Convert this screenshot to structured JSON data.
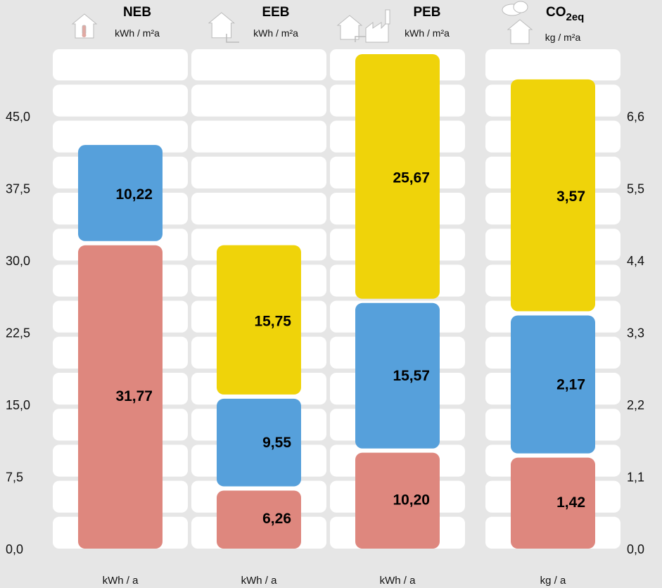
{
  "colors": {
    "background": "#e6e6e6",
    "panel": "#ffffff",
    "red": "#de877e",
    "blue": "#56a0db",
    "yellow": "#efd30a",
    "icon": "#ffffff",
    "icon_outline": "#bbbbbb"
  },
  "chart_data": {
    "type": "bar",
    "stacked": true,
    "grid": true,
    "left_axis": {
      "ticks": [
        "0,0",
        "7,5",
        "15,0",
        "22,5",
        "30,0",
        "37,5",
        "45,0"
      ],
      "ylim": [
        0,
        50
      ]
    },
    "right_axis": {
      "ticks": [
        "0,0",
        "1,1",
        "2,2",
        "3,3",
        "4,4",
        "5,5",
        "6,6"
      ],
      "ylim": [
        0,
        7.33
      ]
    },
    "columns": [
      {
        "title": "NEB",
        "unit": "kWh / m²a",
        "bottom_unit": "kWh / a",
        "icon": "house-thermometer-icon",
        "axis": "left",
        "segments": [
          {
            "value": 31.77,
            "label": "31,77",
            "color": "red"
          },
          {
            "value": 10.22,
            "label": "10,22",
            "color": "blue"
          }
        ]
      },
      {
        "title": "EEB",
        "unit": "kWh / m²a",
        "bottom_unit": "kWh / a",
        "icon": "house-pipe-icon",
        "axis": "left",
        "segments": [
          {
            "value": 6.26,
            "label": "6,26",
            "color": "red"
          },
          {
            "value": 9.55,
            "label": "9,55",
            "color": "blue"
          },
          {
            "value": 15.75,
            "label": "15,75",
            "color": "yellow"
          }
        ]
      },
      {
        "title": "PEB",
        "unit": "kWh / m²a",
        "bottom_unit": "kWh / a",
        "icon": "house-factory-icon",
        "axis": "left",
        "segments": [
          {
            "value": 10.2,
            "label": "10,20",
            "color": "red"
          },
          {
            "value": 15.57,
            "label": "15,57",
            "color": "blue"
          },
          {
            "value": 25.67,
            "label": "25,67",
            "color": "yellow"
          }
        ]
      },
      {
        "title_main": "CO",
        "title_sub": "2eq",
        "unit": "kg / m²a",
        "bottom_unit": "kg / a",
        "icon": "house-cloud-icon",
        "axis": "right",
        "segments": [
          {
            "value": 1.42,
            "label": "1,42",
            "color": "red"
          },
          {
            "value": 2.17,
            "label": "2,17",
            "color": "blue"
          },
          {
            "value": 3.57,
            "label": "3,57",
            "color": "yellow"
          }
        ]
      }
    ]
  }
}
